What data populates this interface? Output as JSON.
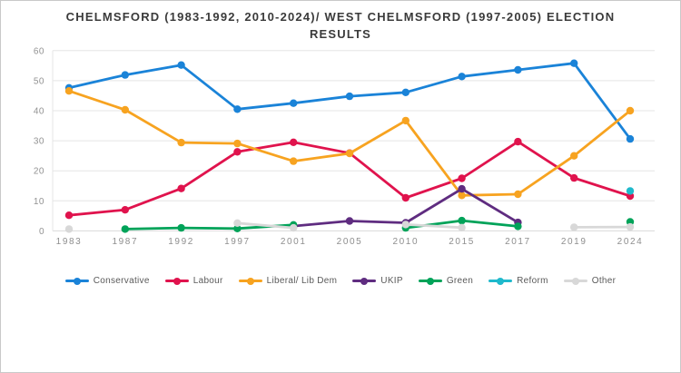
{
  "title": "CHELMSFORD (1983-1992, 2010-2024)/ WEST CHELMSFORD (1997-2005) ELECTION RESULTS",
  "chart_data": {
    "type": "line",
    "title": "CHELMSFORD (1983-1992, 2010-2024)/ WEST CHELMSFORD (1997-2005) ELECTION RESULTS",
    "categories": [
      "1983",
      "1987",
      "1992",
      "1997",
      "2001",
      "2005",
      "2010",
      "2015",
      "2017",
      "2019",
      "2024"
    ],
    "series": [
      {
        "name": "Conservative",
        "color": "#1a83d8",
        "values": [
          47.6,
          51.9,
          55.2,
          40.5,
          42.5,
          44.8,
          46.1,
          51.4,
          53.6,
          55.8,
          30.6
        ]
      },
      {
        "name": "Labour",
        "color": "#e0134d",
        "values": [
          5.2,
          7.0,
          14.1,
          26.3,
          29.5,
          25.9,
          11.0,
          17.5,
          29.7,
          17.6,
          11.6
        ]
      },
      {
        "name": "Liberal/ Lib Dem",
        "color": "#f7a320",
        "values": [
          46.6,
          40.3,
          29.4,
          29.1,
          23.2,
          25.8,
          36.7,
          11.8,
          12.2,
          25.0,
          40.0
        ]
      },
      {
        "name": "UKIP",
        "color": "#5f2c80",
        "values": [
          null,
          null,
          null,
          null,
          1.6,
          3.3,
          2.7,
          14.0,
          2.8,
          null,
          null
        ]
      },
      {
        "name": "Green",
        "color": "#00a359",
        "values": [
          null,
          0.6,
          1.0,
          0.8,
          2.0,
          null,
          1.0,
          3.4,
          1.5,
          null,
          3.0
        ]
      },
      {
        "name": "Reform",
        "color": "#1fb9cc",
        "values": [
          null,
          null,
          null,
          null,
          null,
          null,
          null,
          null,
          null,
          null,
          13.3
        ]
      },
      {
        "name": "Other",
        "color": "#d8d8d8",
        "values": [
          0.6,
          null,
          null,
          2.6,
          1.0,
          null,
          2.1,
          1.1,
          null,
          1.2,
          1.3
        ]
      }
    ],
    "xlabel": "",
    "ylabel": "",
    "y_ticks": [
      0,
      10,
      20,
      30,
      40,
      50,
      60
    ],
    "ylim": [
      0,
      60
    ],
    "grid": "horizontal",
    "legend_position": "bottom"
  }
}
